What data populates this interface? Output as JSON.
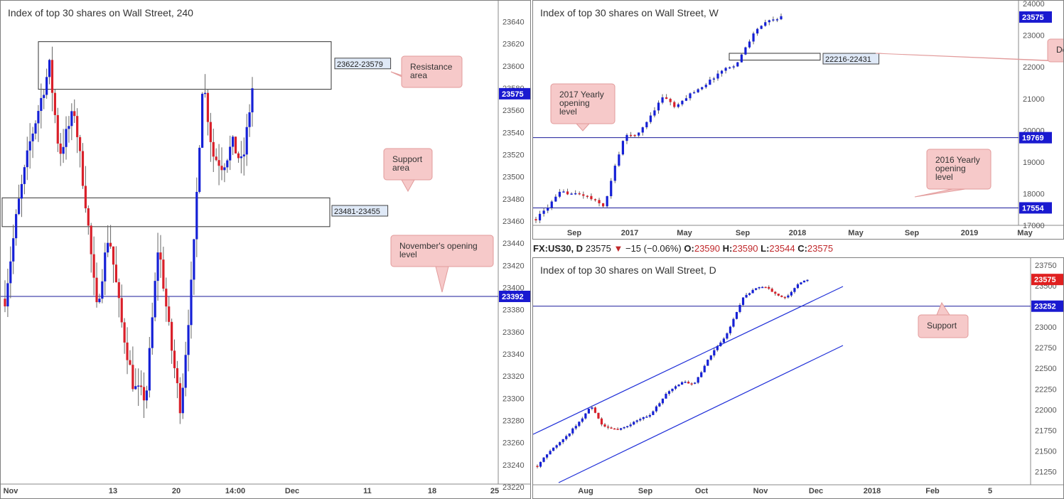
{
  "colors": {
    "bull": "#1520d6",
    "bear": "#d9202a",
    "wick": "#666666",
    "level_line": "#1a1a9a",
    "callout_fill": "#f6c9c9",
    "callout_border": "#e29b9b",
    "price_tag_blue": "#1a1ad0",
    "price_tag_red": "#e02020"
  },
  "header": {
    "symbol": "FX:US30, D",
    "last": "23575",
    "change_arrow": "▼",
    "change": "−15 (−0.06%)",
    "o_label": "O:",
    "o_value": "23590",
    "h_label": "H:",
    "h_value": "23590",
    "l_label": "L:",
    "l_value": "23544",
    "c_label": "C:",
    "c_value": "23575"
  },
  "chart_data": [
    {
      "type": "candlestick",
      "title": "Index of top 30 shares on Wall Street, 240",
      "ylim": [
        23220,
        23650
      ],
      "y_ticks": [
        23220,
        23240,
        23260,
        23280,
        23300,
        23320,
        23340,
        23360,
        23380,
        23400,
        23420,
        23440,
        23460,
        23480,
        23500,
        23520,
        23540,
        23560,
        23580,
        23600,
        23620,
        23640
      ],
      "x_ticks": [
        "Nov",
        "13",
        "20",
        "14:00",
        "Dec",
        "11",
        "18",
        "25"
      ],
      "last_price": "23575",
      "zones": [
        {
          "label": "23622-23579",
          "low": 23579,
          "high": 23622
        },
        {
          "label": "23481-23455",
          "low": 23455,
          "high": 23481
        }
      ],
      "levels": [
        {
          "value": 23392,
          "label": "23392"
        }
      ],
      "annotations": [
        "Resistance area",
        "Support area",
        "November's opening level"
      ]
    },
    {
      "type": "candlestick",
      "title": "Index of top 30 shares on Wall Street, W",
      "ylim": [
        16600,
        24000
      ],
      "y_ticks": [
        17000,
        18000,
        19000,
        20000,
        21000,
        22000,
        23000,
        24000
      ],
      "x_ticks": [
        "Sep",
        "2017",
        "May",
        "Sep",
        "2018",
        "May",
        "Sep",
        "2019",
        "May"
      ],
      "last_price": "23575",
      "zones": [
        {
          "label": "22216-22431",
          "low": 22216,
          "high": 22431
        }
      ],
      "levels": [
        {
          "value": 19769,
          "label": "19769"
        },
        {
          "value": 17554,
          "label": "17554"
        }
      ],
      "annotations": [
        "Demand",
        "2017 Yearly opening level",
        "2016 Yearly opening level"
      ]
    },
    {
      "type": "candlestick",
      "title": "Index of top 30 shares on Wall Street, D",
      "ylim": [
        21100,
        23800
      ],
      "y_ticks": [
        21250,
        21500,
        21750,
        22000,
        22250,
        22500,
        22750,
        23000,
        23250,
        23500,
        23750
      ],
      "x_ticks": [
        "Aug",
        "Sep",
        "Oct",
        "Nov",
        "Dec",
        "2018",
        "Feb",
        "5"
      ],
      "last_price": "23575",
      "levels": [
        {
          "value": 23252,
          "label": "23252"
        }
      ],
      "annotations": [
        "Support"
      ]
    }
  ]
}
